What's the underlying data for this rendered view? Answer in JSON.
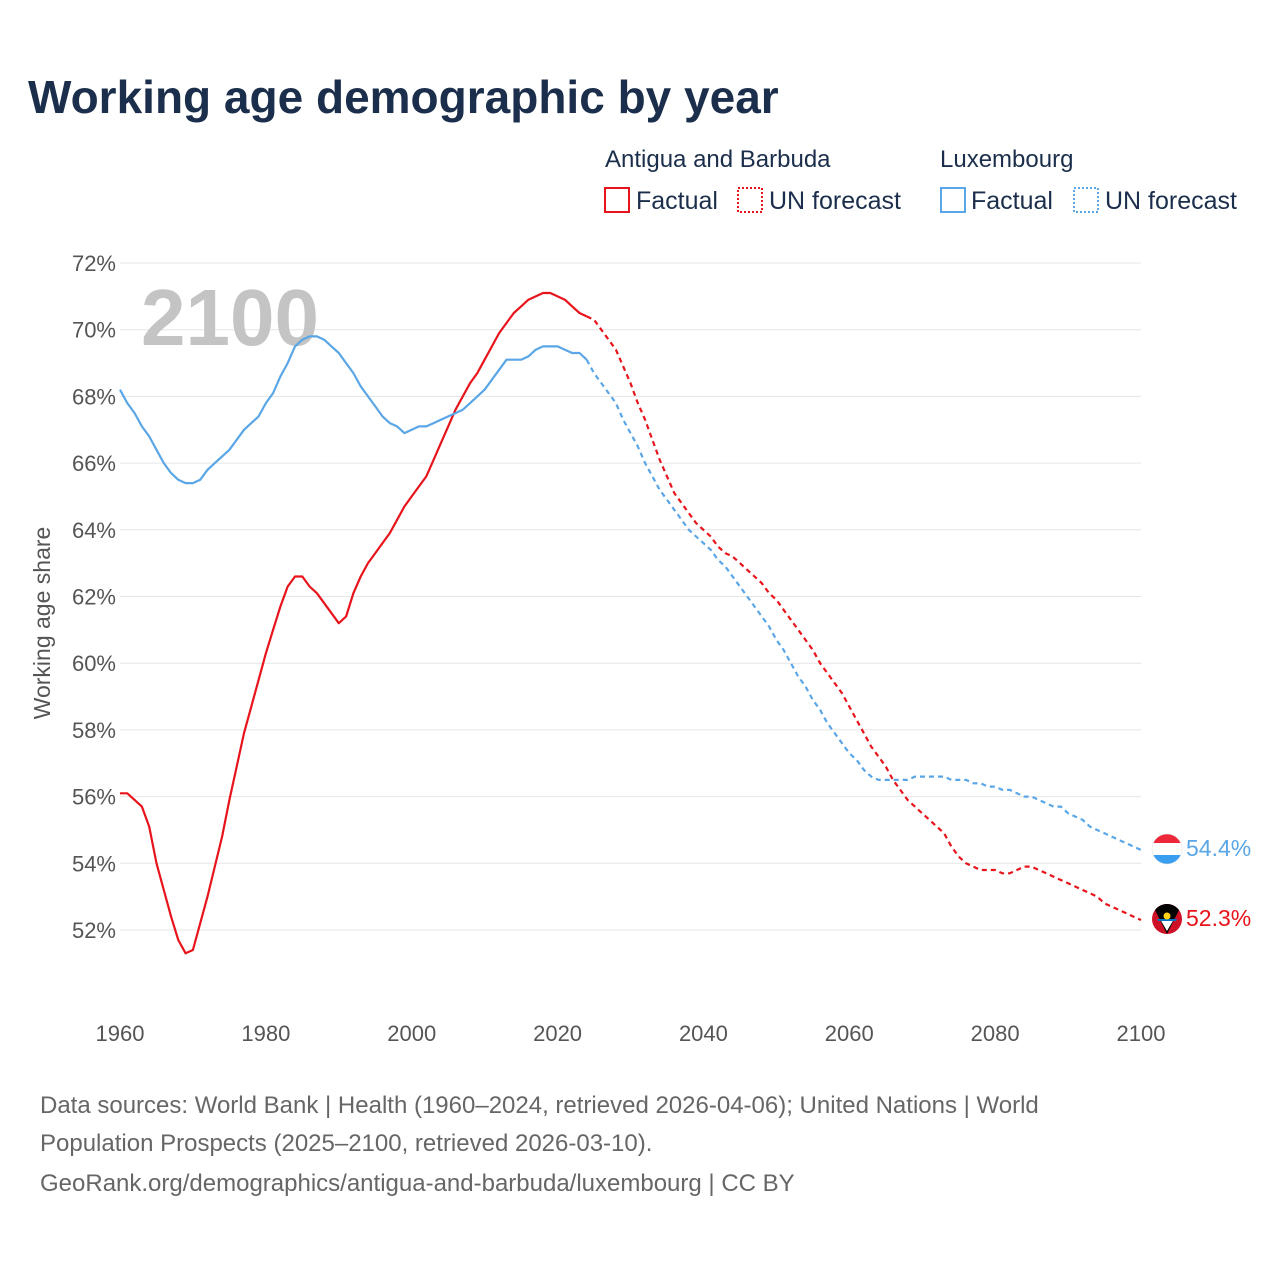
{
  "title": "Working age demographic by year",
  "watermark_year": "2100",
  "colors": {
    "antigua": "#e8141c",
    "luxembourg": "#5aa6e6",
    "title": "#1b2e4b"
  },
  "legend": {
    "groups": [
      {
        "name": "Antigua and Barbuda",
        "factual": "Factual",
        "forecast": "UN forecast"
      },
      {
        "name": "Luxembourg",
        "factual": "Factual",
        "forecast": "UN forecast"
      }
    ]
  },
  "source": {
    "line1": "Data sources: World Bank | Health (1960–2024, retrieved 2026-04-06); United Nations | World",
    "line2": "Population Prospects (2025–2100, retrieved 2026-03-10).",
    "line3": "GeoRank.org/demographics/antigua-and-barbuda/luxembourg | CC BY"
  },
  "chart_data": {
    "type": "line",
    "title": "Working age demographic by year",
    "xlabel": "",
    "ylabel": "Working age share",
    "xlim": [
      1960,
      2100
    ],
    "ylim": [
      50,
      72
    ],
    "y_ticks": [
      52,
      54,
      56,
      58,
      60,
      62,
      64,
      66,
      68,
      70,
      72
    ],
    "y_tick_labels": [
      "52%",
      "54%",
      "56%",
      "58%",
      "60%",
      "62%",
      "64%",
      "66%",
      "68%",
      "70%",
      "72%"
    ],
    "x_ticks": [
      1960,
      1980,
      2000,
      2020,
      2040,
      2060,
      2080,
      2100
    ],
    "x_tick_labels": [
      "1960",
      "1980",
      "2000",
      "2020",
      "2040",
      "2060",
      "2080",
      "2100"
    ],
    "factual_until": 2024,
    "series": [
      {
        "name": "Antigua and Barbuda",
        "end_label": "52.3%",
        "points": [
          [
            1960,
            56.1
          ],
          [
            1961,
            56.1
          ],
          [
            1962,
            55.9
          ],
          [
            1963,
            55.7
          ],
          [
            1964,
            55.1
          ],
          [
            1965,
            54.0
          ],
          [
            1966,
            53.2
          ],
          [
            1967,
            52.4
          ],
          [
            1968,
            51.7
          ],
          [
            1969,
            51.3
          ],
          [
            1970,
            51.4
          ],
          [
            1971,
            52.2
          ],
          [
            1972,
            53.0
          ],
          [
            1973,
            53.9
          ],
          [
            1974,
            54.8
          ],
          [
            1975,
            55.9
          ],
          [
            1976,
            56.9
          ],
          [
            1977,
            57.9
          ],
          [
            1978,
            58.7
          ],
          [
            1979,
            59.5
          ],
          [
            1980,
            60.3
          ],
          [
            1981,
            61.0
          ],
          [
            1982,
            61.7
          ],
          [
            1983,
            62.3
          ],
          [
            1984,
            62.6
          ],
          [
            1985,
            62.6
          ],
          [
            1986,
            62.3
          ],
          [
            1987,
            62.1
          ],
          [
            1988,
            61.8
          ],
          [
            1989,
            61.5
          ],
          [
            1990,
            61.2
          ],
          [
            1991,
            61.4
          ],
          [
            1992,
            62.1
          ],
          [
            1993,
            62.6
          ],
          [
            1994,
            63.0
          ],
          [
            1995,
            63.3
          ],
          [
            1996,
            63.6
          ],
          [
            1997,
            63.9
          ],
          [
            1998,
            64.3
          ],
          [
            1999,
            64.7
          ],
          [
            2000,
            65.0
          ],
          [
            2001,
            65.3
          ],
          [
            2002,
            65.6
          ],
          [
            2003,
            66.1
          ],
          [
            2004,
            66.6
          ],
          [
            2005,
            67.1
          ],
          [
            2006,
            67.6
          ],
          [
            2007,
            68.0
          ],
          [
            2008,
            68.4
          ],
          [
            2009,
            68.7
          ],
          [
            2010,
            69.1
          ],
          [
            2011,
            69.5
          ],
          [
            2012,
            69.9
          ],
          [
            2013,
            70.2
          ],
          [
            2014,
            70.5
          ],
          [
            2015,
            70.7
          ],
          [
            2016,
            70.9
          ],
          [
            2017,
            71.0
          ],
          [
            2018,
            71.1
          ],
          [
            2019,
            71.1
          ],
          [
            2020,
            71.0
          ],
          [
            2021,
            70.9
          ],
          [
            2022,
            70.7
          ],
          [
            2023,
            70.5
          ],
          [
            2024,
            70.4
          ],
          [
            2025,
            70.3
          ],
          [
            2026,
            70.0
          ],
          [
            2027,
            69.7
          ],
          [
            2028,
            69.4
          ],
          [
            2029,
            68.9
          ],
          [
            2030,
            68.4
          ],
          [
            2031,
            67.8
          ],
          [
            2032,
            67.3
          ],
          [
            2033,
            66.7
          ],
          [
            2034,
            66.1
          ],
          [
            2035,
            65.6
          ],
          [
            2036,
            65.1
          ],
          [
            2037,
            64.8
          ],
          [
            2038,
            64.5
          ],
          [
            2039,
            64.2
          ],
          [
            2040,
            64.0
          ],
          [
            2041,
            63.8
          ],
          [
            2042,
            63.5
          ],
          [
            2043,
            63.3
          ],
          [
            2044,
            63.2
          ],
          [
            2045,
            63.0
          ],
          [
            2046,
            62.8
          ],
          [
            2047,
            62.6
          ],
          [
            2048,
            62.4
          ],
          [
            2049,
            62.1
          ],
          [
            2050,
            61.9
          ],
          [
            2051,
            61.6
          ],
          [
            2052,
            61.3
          ],
          [
            2053,
            61.0
          ],
          [
            2054,
            60.7
          ],
          [
            2055,
            60.4
          ],
          [
            2056,
            60.0
          ],
          [
            2057,
            59.7
          ],
          [
            2058,
            59.4
          ],
          [
            2059,
            59.1
          ],
          [
            2060,
            58.7
          ],
          [
            2061,
            58.3
          ],
          [
            2062,
            57.9
          ],
          [
            2063,
            57.5
          ],
          [
            2064,
            57.2
          ],
          [
            2065,
            56.9
          ],
          [
            2066,
            56.5
          ],
          [
            2067,
            56.2
          ],
          [
            2068,
            55.9
          ],
          [
            2069,
            55.7
          ],
          [
            2070,
            55.5
          ],
          [
            2071,
            55.3
          ],
          [
            2072,
            55.1
          ],
          [
            2073,
            54.9
          ],
          [
            2074,
            54.5
          ],
          [
            2075,
            54.2
          ],
          [
            2076,
            54.0
          ],
          [
            2077,
            53.9
          ],
          [
            2078,
            53.8
          ],
          [
            2079,
            53.8
          ],
          [
            2080,
            53.8
          ],
          [
            2081,
            53.7
          ],
          [
            2082,
            53.7
          ],
          [
            2083,
            53.8
          ],
          [
            2084,
            53.9
          ],
          [
            2085,
            53.9
          ],
          [
            2086,
            53.8
          ],
          [
            2087,
            53.7
          ],
          [
            2088,
            53.6
          ],
          [
            2089,
            53.5
          ],
          [
            2090,
            53.4
          ],
          [
            2091,
            53.3
          ],
          [
            2092,
            53.2
          ],
          [
            2093,
            53.1
          ],
          [
            2094,
            53.0
          ],
          [
            2095,
            52.8
          ],
          [
            2096,
            52.7
          ],
          [
            2097,
            52.6
          ],
          [
            2098,
            52.5
          ],
          [
            2099,
            52.4
          ],
          [
            2100,
            52.3
          ]
        ]
      },
      {
        "name": "Luxembourg",
        "end_label": "54.4%",
        "points": [
          [
            1960,
            68.2
          ],
          [
            1961,
            67.8
          ],
          [
            1962,
            67.5
          ],
          [
            1963,
            67.1
          ],
          [
            1964,
            66.8
          ],
          [
            1965,
            66.4
          ],
          [
            1966,
            66.0
          ],
          [
            1967,
            65.7
          ],
          [
            1968,
            65.5
          ],
          [
            1969,
            65.4
          ],
          [
            1970,
            65.4
          ],
          [
            1971,
            65.5
          ],
          [
            1972,
            65.8
          ],
          [
            1973,
            66.0
          ],
          [
            1974,
            66.2
          ],
          [
            1975,
            66.4
          ],
          [
            1976,
            66.7
          ],
          [
            1977,
            67.0
          ],
          [
            1978,
            67.2
          ],
          [
            1979,
            67.4
          ],
          [
            1980,
            67.8
          ],
          [
            1981,
            68.1
          ],
          [
            1982,
            68.6
          ],
          [
            1983,
            69.0
          ],
          [
            1984,
            69.5
          ],
          [
            1985,
            69.7
          ],
          [
            1986,
            69.8
          ],
          [
            1987,
            69.8
          ],
          [
            1988,
            69.7
          ],
          [
            1989,
            69.5
          ],
          [
            1990,
            69.3
          ],
          [
            1991,
            69.0
          ],
          [
            1992,
            68.7
          ],
          [
            1993,
            68.3
          ],
          [
            1994,
            68.0
          ],
          [
            1995,
            67.7
          ],
          [
            1996,
            67.4
          ],
          [
            1997,
            67.2
          ],
          [
            1998,
            67.1
          ],
          [
            1999,
            66.9
          ],
          [
            2000,
            67.0
          ],
          [
            2001,
            67.1
          ],
          [
            2002,
            67.1
          ],
          [
            2003,
            67.2
          ],
          [
            2004,
            67.3
          ],
          [
            2005,
            67.4
          ],
          [
            2006,
            67.5
          ],
          [
            2007,
            67.6
          ],
          [
            2008,
            67.8
          ],
          [
            2009,
            68.0
          ],
          [
            2010,
            68.2
          ],
          [
            2011,
            68.5
          ],
          [
            2012,
            68.8
          ],
          [
            2013,
            69.1
          ],
          [
            2014,
            69.1
          ],
          [
            2015,
            69.1
          ],
          [
            2016,
            69.2
          ],
          [
            2017,
            69.4
          ],
          [
            2018,
            69.5
          ],
          [
            2019,
            69.5
          ],
          [
            2020,
            69.5
          ],
          [
            2021,
            69.4
          ],
          [
            2022,
            69.3
          ],
          [
            2023,
            69.3
          ],
          [
            2024,
            69.1
          ],
          [
            2025,
            68.7
          ],
          [
            2026,
            68.4
          ],
          [
            2027,
            68.1
          ],
          [
            2028,
            67.8
          ],
          [
            2029,
            67.3
          ],
          [
            2030,
            66.9
          ],
          [
            2031,
            66.5
          ],
          [
            2032,
            66.0
          ],
          [
            2033,
            65.6
          ],
          [
            2034,
            65.2
          ],
          [
            2035,
            64.9
          ],
          [
            2036,
            64.6
          ],
          [
            2037,
            64.3
          ],
          [
            2038,
            64.0
          ],
          [
            2039,
            63.8
          ],
          [
            2040,
            63.6
          ],
          [
            2041,
            63.4
          ],
          [
            2042,
            63.1
          ],
          [
            2043,
            62.9
          ],
          [
            2044,
            62.6
          ],
          [
            2045,
            62.3
          ],
          [
            2046,
            62.0
          ],
          [
            2047,
            61.7
          ],
          [
            2048,
            61.4
          ],
          [
            2049,
            61.1
          ],
          [
            2050,
            60.7
          ],
          [
            2051,
            60.4
          ],
          [
            2052,
            60.0
          ],
          [
            2053,
            59.6
          ],
          [
            2054,
            59.3
          ],
          [
            2055,
            58.9
          ],
          [
            2056,
            58.6
          ],
          [
            2057,
            58.2
          ],
          [
            2058,
            57.9
          ],
          [
            2059,
            57.6
          ],
          [
            2060,
            57.3
          ],
          [
            2061,
            57.1
          ],
          [
            2062,
            56.8
          ],
          [
            2063,
            56.6
          ],
          [
            2064,
            56.5
          ],
          [
            2065,
            56.5
          ],
          [
            2066,
            56.5
          ],
          [
            2067,
            56.5
          ],
          [
            2068,
            56.5
          ],
          [
            2069,
            56.6
          ],
          [
            2070,
            56.6
          ],
          [
            2071,
            56.6
          ],
          [
            2072,
            56.6
          ],
          [
            2073,
            56.6
          ],
          [
            2074,
            56.5
          ],
          [
            2075,
            56.5
          ],
          [
            2076,
            56.5
          ],
          [
            2077,
            56.4
          ],
          [
            2078,
            56.4
          ],
          [
            2079,
            56.3
          ],
          [
            2080,
            56.3
          ],
          [
            2081,
            56.2
          ],
          [
            2082,
            56.2
          ],
          [
            2083,
            56.1
          ],
          [
            2084,
            56.0
          ],
          [
            2085,
            56.0
          ],
          [
            2086,
            55.9
          ],
          [
            2087,
            55.8
          ],
          [
            2088,
            55.7
          ],
          [
            2089,
            55.7
          ],
          [
            2090,
            55.5
          ],
          [
            2091,
            55.4
          ],
          [
            2092,
            55.3
          ],
          [
            2093,
            55.1
          ],
          [
            2094,
            55.0
          ],
          [
            2095,
            54.9
          ],
          [
            2096,
            54.8
          ],
          [
            2097,
            54.7
          ],
          [
            2098,
            54.6
          ],
          [
            2099,
            54.5
          ],
          [
            2100,
            54.4
          ]
        ]
      }
    ]
  }
}
